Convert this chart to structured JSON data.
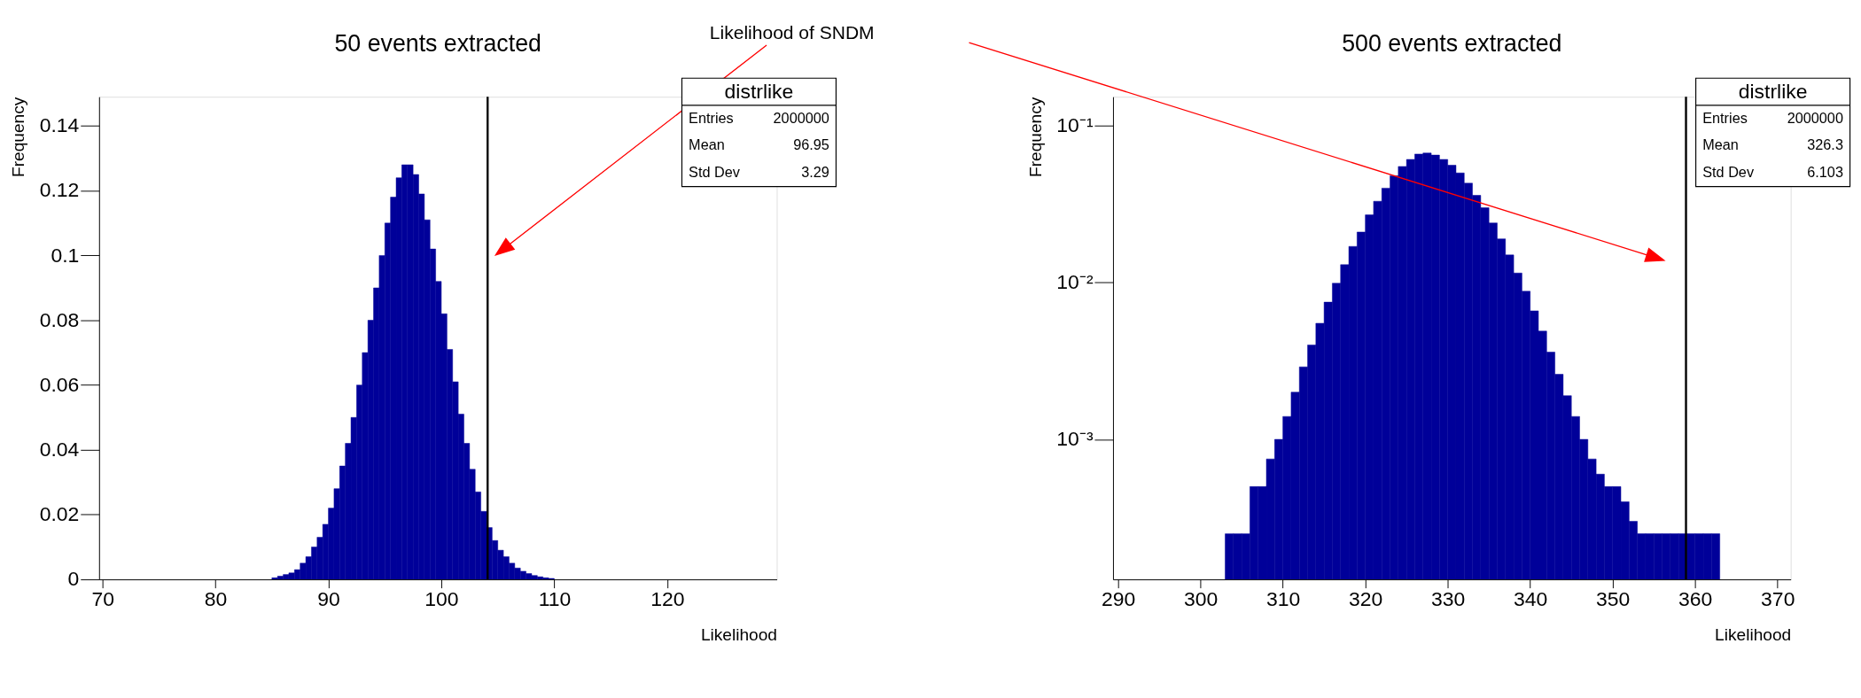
{
  "chart_data": [
    {
      "type": "histogram",
      "title": "50 events extracted",
      "xlabel": "Likelihood",
      "ylabel": "Frequency",
      "bins": [
        85,
        85.5,
        86,
        86.5,
        87,
        87.5,
        88,
        88.5,
        89,
        89.5,
        90,
        90.5,
        91,
        91.5,
        92,
        92.5,
        93,
        93.5,
        94,
        94.5,
        95,
        95.5,
        96,
        96.5,
        97,
        97.5,
        98,
        98.5,
        99,
        99.5,
        100,
        100.5,
        101,
        101.5,
        102,
        102.5,
        103,
        103.5,
        104,
        104.5,
        105,
        105.5,
        106,
        106.5,
        107,
        107.5,
        108,
        108.5,
        109,
        109.5,
        110
      ],
      "values": [
        0.0005,
        0.001,
        0.0015,
        0.002,
        0.003,
        0.005,
        0.007,
        0.01,
        0.013,
        0.017,
        0.022,
        0.028,
        0.035,
        0.042,
        0.05,
        0.06,
        0.07,
        0.08,
        0.09,
        0.1,
        0.11,
        0.118,
        0.124,
        0.128,
        0.128,
        0.125,
        0.119,
        0.111,
        0.102,
        0.092,
        0.082,
        0.071,
        0.061,
        0.051,
        0.042,
        0.034,
        0.027,
        0.021,
        0.016,
        0.012,
        0.009,
        0.007,
        0.005,
        0.0035,
        0.0025,
        0.0018,
        0.0012,
        0.0008,
        0.0005,
        0.0003
      ],
      "color": "#000099",
      "xlim": [
        69.7,
        129.7
      ],
      "xticks": [
        70,
        80,
        90,
        100,
        110,
        120
      ],
      "ylim": [
        0,
        0.149
      ],
      "yticks": [
        0,
        0.02,
        0.04,
        0.06,
        0.08,
        0.1,
        0.12,
        0.14
      ],
      "grid": false,
      "ref_lines": [
        {
          "axis": "x",
          "value": 104.1,
          "color": "#000000"
        }
      ],
      "annotations": [
        "Likelihood of SNDM",
        "distrlike",
        "Entries",
        "2000000",
        "Mean",
        "96.95",
        "Std Dev",
        "3.29"
      ]
    },
    {
      "type": "histogram",
      "title": "500 events extracted",
      "xlabel": "Likelihood",
      "ylabel": "Frequency",
      "bins": [
        303,
        304,
        305,
        306,
        307,
        308,
        309,
        310,
        311,
        312,
        313,
        314,
        315,
        316,
        317,
        318,
        319,
        320,
        321,
        322,
        323,
        324,
        325,
        326,
        327,
        328,
        329,
        330,
        331,
        332,
        333,
        334,
        335,
        336,
        337,
        338,
        339,
        340,
        341,
        342,
        343,
        344,
        345,
        346,
        347,
        348,
        349,
        350,
        351,
        352,
        353,
        354,
        355,
        356,
        357,
        358,
        359,
        360,
        361,
        362,
        363
      ],
      "values": [
        0.00025,
        0.00025,
        0.00025,
        0.0005,
        0.0005,
        0.00075,
        0.001,
        0.0014,
        0.002,
        0.0029,
        0.004,
        0.0055,
        0.0075,
        0.0099,
        0.013,
        0.017,
        0.021,
        0.027,
        0.033,
        0.04,
        0.048,
        0.055,
        0.061,
        0.066,
        0.067,
        0.065,
        0.061,
        0.056,
        0.05,
        0.043,
        0.036,
        0.03,
        0.024,
        0.019,
        0.015,
        0.0115,
        0.0088,
        0.0066,
        0.0049,
        0.0036,
        0.0026,
        0.0019,
        0.0014,
        0.001,
        0.00075,
        0.0006,
        0.0005,
        0.0005,
        0.0004,
        0.0003,
        0.00025,
        0.00025,
        0.00025,
        0.00025,
        0.00025,
        0.00025,
        0.00025,
        0.00025,
        0.00025,
        0.00025
      ],
      "color": "#000099",
      "xlim": [
        289.4,
        371.6
      ],
      "xticks": [
        290,
        300,
        310,
        320,
        330,
        340,
        350,
        360,
        370
      ],
      "ylim": [
        0.000128,
        0.153
      ],
      "log": "y",
      "yticks": [
        {
          "value": 0.1,
          "label": "10⁻¹"
        },
        {
          "value": 0.01,
          "label": "10⁻²"
        },
        {
          "value": 0.001,
          "label": "10⁻³"
        }
      ],
      "grid": false,
      "ref_lines": [
        {
          "axis": "x",
          "value": 358.9,
          "color": "#000000"
        }
      ],
      "annotations": [
        "distrlike",
        "Entries",
        "2000000",
        "Mean",
        "326.3",
        "Std Dev",
        "6.103"
      ]
    }
  ]
}
